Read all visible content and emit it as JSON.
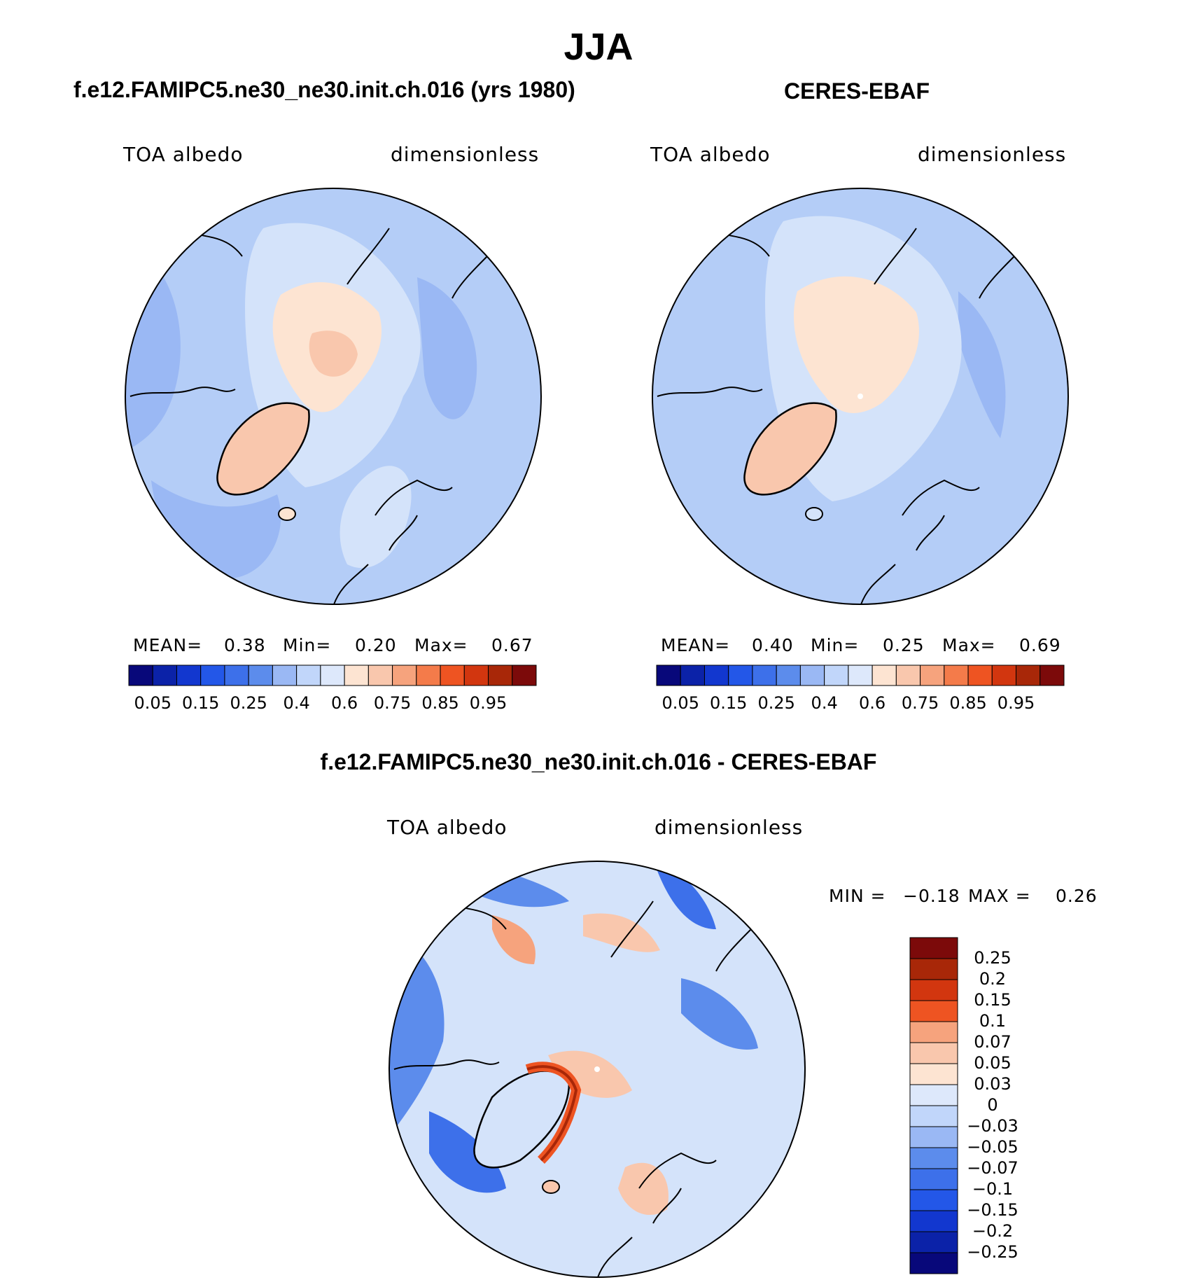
{
  "main_title": "JJA",
  "panels": [
    {
      "title": "f.e12.FAMIPC5.ne30_ne30.init.ch.016 (yrs 1980)",
      "variable": "TOA albedo",
      "units": "dimensionless",
      "stats": {
        "mean_label": "MEAN=",
        "mean": "0.38",
        "min_label": "Min=",
        "min": "0.20",
        "max_label": "Max=",
        "max": "0.67"
      }
    },
    {
      "title": "CERES-EBAF",
      "variable": "TOA albedo",
      "units": "dimensionless",
      "stats": {
        "mean_label": "MEAN=",
        "mean": "0.40",
        "min_label": "Min=",
        "min": "0.25",
        "max_label": "Max=",
        "max": "0.69"
      }
    },
    {
      "title": "f.e12.FAMIPC5.ne30_ne30.init.ch.016 - CERES-EBAF",
      "variable": "TOA albedo",
      "units": "dimensionless",
      "stats": {
        "min_label": "MIN =",
        "min": "−0.18",
        "max_label": "MAX =",
        "max": "0.26"
      }
    }
  ],
  "chart_data": [
    {
      "type": "heatmap",
      "projection": "north polar stereographic",
      "title": "f.e12.FAMIPC5.ne30_ne30.init.ch.016 (yrs 1980)",
      "variable": "TOA albedo",
      "units": "dimensionless",
      "mean": 0.38,
      "min": 0.2,
      "max": 0.67,
      "colorbar_levels": [
        0.05,
        0.1,
        0.15,
        0.2,
        0.25,
        0.3,
        0.35,
        0.4,
        0.5,
        0.6,
        0.65,
        0.7,
        0.75,
        0.8,
        0.85,
        0.9,
        0.95
      ],
      "colorbar_tick_labels": [
        "0.05",
        "0.15",
        "0.25",
        "0.4",
        "0.6",
        "0.75",
        "0.85",
        "0.95"
      ]
    },
    {
      "type": "heatmap",
      "projection": "north polar stereographic",
      "title": "CERES-EBAF",
      "variable": "TOA albedo",
      "units": "dimensionless",
      "mean": 0.4,
      "min": 0.25,
      "max": 0.69,
      "colorbar_levels": [
        0.05,
        0.1,
        0.15,
        0.2,
        0.25,
        0.3,
        0.35,
        0.4,
        0.5,
        0.6,
        0.65,
        0.7,
        0.75,
        0.8,
        0.85,
        0.9,
        0.95
      ],
      "colorbar_tick_labels": [
        "0.05",
        "0.15",
        "0.25",
        "0.4",
        "0.6",
        "0.75",
        "0.85",
        "0.95"
      ]
    },
    {
      "type": "heatmap",
      "projection": "north polar stereographic",
      "title": "f.e12.FAMIPC5.ne30_ne30.init.ch.016 - CERES-EBAF",
      "variable": "TOA albedo",
      "units": "dimensionless",
      "min": -0.18,
      "max": 0.26,
      "colorbar_levels": [
        0.25,
        0.2,
        0.15,
        0.1,
        0.07,
        0.05,
        0.03,
        0,
        -0.03,
        -0.05,
        -0.07,
        -0.1,
        -0.15,
        -0.2,
        -0.25
      ],
      "colorbar_tick_labels": [
        "0.25",
        "0.2",
        "0.15",
        "0.1",
        "0.07",
        "0.05",
        "0.03",
        "0",
        "−0.03",
        "−0.05",
        "−0.07",
        "−0.1",
        "−0.15",
        "−0.2",
        "−0.25"
      ]
    }
  ],
  "colors": {
    "horizontal_bar": [
      "#08087a",
      "#0b22a8",
      "#1237cf",
      "#2357e8",
      "#3d70ea",
      "#5c8cec",
      "#9ab8f4",
      "#c1d6fa",
      "#dde8fb",
      "#fde4d2",
      "#f9c7ad",
      "#f6a37d",
      "#f47b4a",
      "#ee5422",
      "#d2360f",
      "#a82708",
      "#7c0a0a"
    ],
    "vertical_bar": [
      "#7c0a0a",
      "#a82708",
      "#d2360f",
      "#ee5422",
      "#f6a37d",
      "#f9c7ad",
      "#fde4d2",
      "#dde8fb",
      "#c1d6fa",
      "#9ab8f4",
      "#5c8cec",
      "#3d70ea",
      "#2357e8",
      "#1237cf",
      "#0b22a8",
      "#08087a"
    ],
    "map_light_blue": "#b4cdf7",
    "map_medium_blue": "#9ab8f4",
    "map_pale_blue": "#d4e3fa",
    "map_peach": "#fde4d2",
    "map_salmon": "#f9c7ad"
  }
}
